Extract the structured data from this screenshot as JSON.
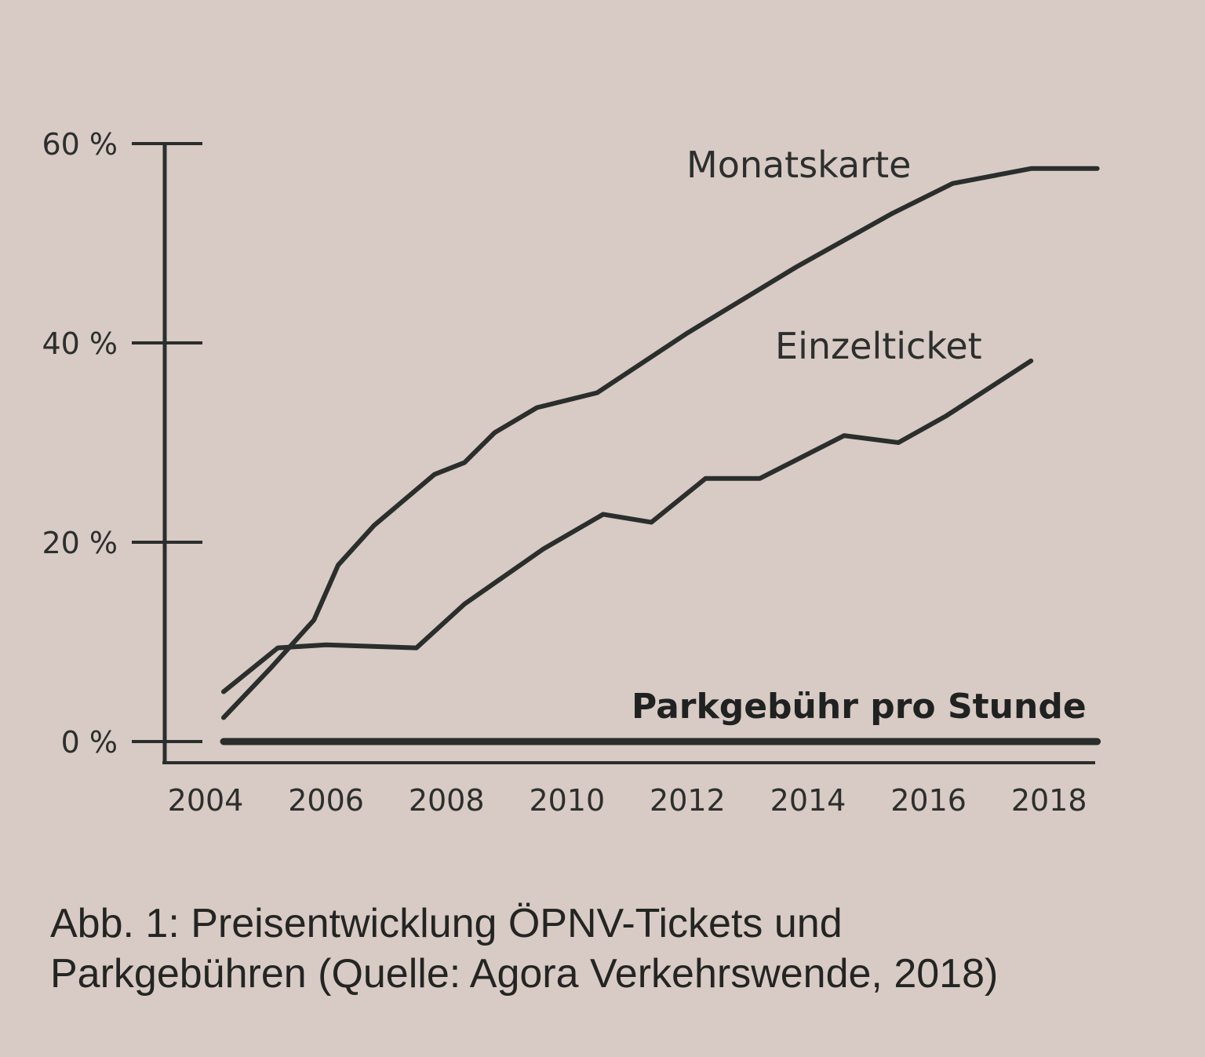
{
  "chart_data": {
    "type": "line",
    "title": "",
    "xlabel": "",
    "ylabel": "",
    "xlim": [
      2004,
      2019
    ],
    "ylim": [
      0,
      60
    ],
    "x_ticks": [
      "2004",
      "2006",
      "2008",
      "2010",
      "2012",
      "2014",
      "2016",
      "2018"
    ],
    "y_ticks": [
      "0 %",
      "20 %",
      "40 %",
      "60 %"
    ],
    "y_tick_values": [
      0,
      20,
      40,
      60
    ],
    "grid": false,
    "series": [
      {
        "name": "Monatskarte",
        "label": "Monatskarte",
        "x": [
          2004.3,
          2005.1,
          2005.8,
          2006.2,
          2006.8,
          2007.8,
          2008.3,
          2008.8,
          2009.5,
          2010.5,
          2012.0,
          2013.8,
          2015.4,
          2016.4,
          2017.7,
          2018.8
        ],
        "y": [
          2.4,
          7.5,
          12.2,
          17.7,
          21.7,
          26.8,
          28.0,
          31.0,
          33.5,
          35.0,
          41.0,
          47.6,
          53.0,
          56.0,
          57.5,
          57.5
        ]
      },
      {
        "name": "Einzelticket",
        "label": "Einzelticket",
        "x": [
          2004.3,
          2005.2,
          2006.0,
          2007.5,
          2008.3,
          2009.6,
          2010.6,
          2011.4,
          2012.3,
          2013.2,
          2014.6,
          2015.5,
          2016.3,
          2017.7
        ],
        "y": [
          5.0,
          9.4,
          9.7,
          9.4,
          13.8,
          19.3,
          22.8,
          22.0,
          26.4,
          26.4,
          30.7,
          30.0,
          32.7,
          38.2
        ]
      },
      {
        "name": "Parkgebühr pro Stunde",
        "label": "Parkgebühr pro Stunde",
        "x": [
          2004.3,
          2018.8
        ],
        "y": [
          0,
          0
        ]
      }
    ],
    "caption": [
      "Abb. 1: Preisentwicklung ÖPNV-Tickets und",
      "Parkgebühren (Quelle: Agora Verkehrswende, 2018)"
    ]
  },
  "colors": {
    "background": "#d8cac4",
    "ink": "#2a2e2c"
  }
}
